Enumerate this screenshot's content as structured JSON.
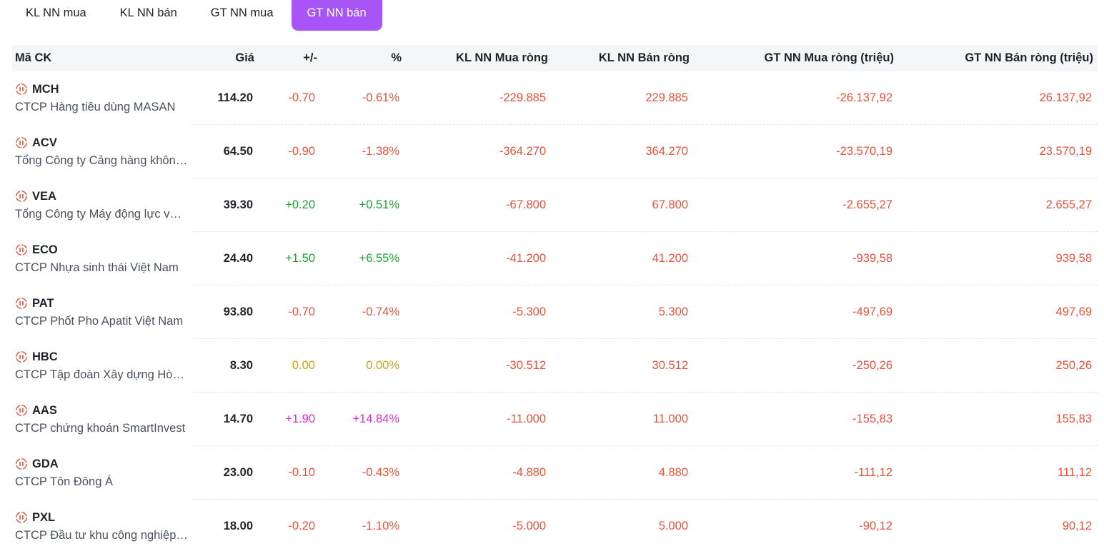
{
  "tabs": [
    {
      "label": "KL NN mua",
      "active": false
    },
    {
      "label": "KL NN bán",
      "active": false
    },
    {
      "label": "GT NN mua",
      "active": false
    },
    {
      "label": "GT NN bán",
      "active": true
    }
  ],
  "colors": {
    "accent": "#a855f7",
    "down": "#e5533d",
    "up": "#1aa531",
    "reference": "#c7a51a",
    "ceiling": "#e02ad6"
  },
  "columns": {
    "code": "Mã CK",
    "price": "Giá",
    "change": "+/-",
    "pct": "%",
    "kl_buy": "KL NN Mua ròng",
    "kl_sell": "KL NN Bán ròng",
    "gt_buy": "GT NN Mua ròng (triệu)",
    "gt_sell": "GT NN Bán ròng (triệu)"
  },
  "rows": [
    {
      "code": "MCH",
      "name": "CTCP Hàng tiêu dùng MASAN",
      "price": "114.20",
      "change": "-0.70",
      "pct": "-0.61%",
      "status": "down",
      "kl_buy": "-229.885",
      "kl_sell": "229.885",
      "gt_buy": "-26.137,92",
      "gt_sell": "26.137,92"
    },
    {
      "code": "ACV",
      "name": "Tổng Công ty Cảng hàng không Việt Nam",
      "price": "64.50",
      "change": "-0.90",
      "pct": "-1.38%",
      "status": "down",
      "kl_buy": "-364.270",
      "kl_sell": "364.270",
      "gt_buy": "-23.570,19",
      "gt_sell": "23.570,19"
    },
    {
      "code": "VEA",
      "name": "Tổng Công ty Máy động lực và Máy nông nghiệp",
      "price": "39.30",
      "change": "+0.20",
      "pct": "+0.51%",
      "status": "up",
      "kl_buy": "-67.800",
      "kl_sell": "67.800",
      "gt_buy": "-2.655,27",
      "gt_sell": "2.655,27"
    },
    {
      "code": "ECO",
      "name": "CTCP Nhựa sinh thái Việt Nam",
      "price": "24.40",
      "change": "+1.50",
      "pct": "+6.55%",
      "status": "up",
      "kl_buy": "-41.200",
      "kl_sell": "41.200",
      "gt_buy": "-939,58",
      "gt_sell": "939,58"
    },
    {
      "code": "PAT",
      "name": "CTCP Phốt Pho Apatit Việt Nam",
      "price": "93.80",
      "change": "-0.70",
      "pct": "-0.74%",
      "status": "down",
      "kl_buy": "-5.300",
      "kl_sell": "5.300",
      "gt_buy": "-497,69",
      "gt_sell": "497,69"
    },
    {
      "code": "HBC",
      "name": "CTCP Tập đoàn Xây dựng Hòa Bình",
      "price": "8.30",
      "change": "0.00",
      "pct": "0.00%",
      "status": "reference",
      "kl_buy": "-30.512",
      "kl_sell": "30.512",
      "gt_buy": "-250,26",
      "gt_sell": "250,26"
    },
    {
      "code": "AAS",
      "name": "CTCP chứng khoán SmartInvest",
      "price": "14.70",
      "change": "+1.90",
      "pct": "+14.84%",
      "status": "ceiling",
      "kl_buy": "-11.000",
      "kl_sell": "11.000",
      "gt_buy": "-155,83",
      "gt_sell": "155,83"
    },
    {
      "code": "GDA",
      "name": "CTCP Tôn Đông Á",
      "price": "23.00",
      "change": "-0.10",
      "pct": "-0.43%",
      "status": "down",
      "kl_buy": "-4.880",
      "kl_sell": "4.880",
      "gt_buy": "-111,12",
      "gt_sell": "111,12"
    },
    {
      "code": "PXL",
      "name": "CTCP Đầu tư khu công nghiệp Dầu khí Long Sơn",
      "price": "18.00",
      "change": "-0.20",
      "pct": "-1.10%",
      "status": "down",
      "kl_buy": "-5.000",
      "kl_sell": "5.000",
      "gt_buy": "-90,12",
      "gt_sell": "90,12"
    }
  ]
}
